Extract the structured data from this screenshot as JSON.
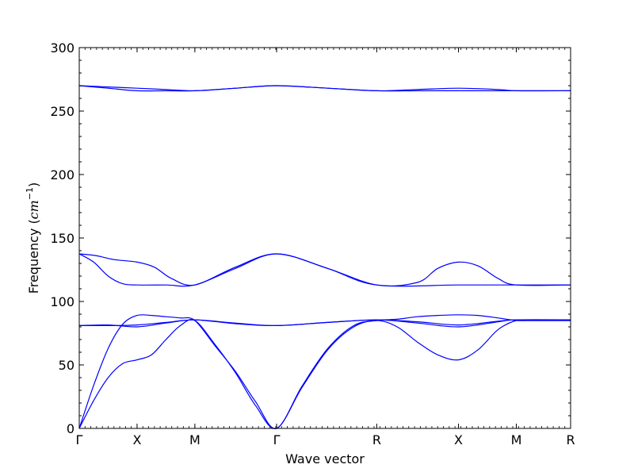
{
  "chart_data": {
    "type": "line",
    "title": "",
    "xlabel": "Wave vector",
    "ylabel": "Frequency (cm⁻¹)",
    "ylabel_parts": {
      "text": "Frequency (",
      "unit": "cm",
      "exp": "−1",
      "close": ")"
    },
    "ylim": [
      0,
      300
    ],
    "yticks": [
      0,
      50,
      100,
      150,
      200,
      250,
      300
    ],
    "xlim": [
      0,
      8.5
    ],
    "xticks": [
      {
        "pos": 0,
        "label": "Γ"
      },
      {
        "pos": 1,
        "label": "X"
      },
      {
        "pos": 2,
        "label": "M"
      },
      {
        "pos": 3.4142,
        "label": "Γ"
      },
      {
        "pos": 5.1463,
        "label": "R"
      },
      {
        "pos": 6.5605,
        "label": "X"
      },
      {
        "pos": 7.5605,
        "label": "M"
      },
      {
        "pos": 8.5,
        "label": "R"
      }
    ],
    "line_color": "#0000ff",
    "grid": false,
    "series": [
      {
        "x": [
          0,
          0.25,
          0.5,
          0.75,
          1,
          1.25,
          1.5,
          1.75,
          2,
          2.35,
          2.7,
          3.05,
          3.4142,
          3.85,
          4.3,
          4.75,
          5.1463,
          5.5,
          5.85,
          6.2,
          6.5605,
          6.9,
          7.25,
          7.5605,
          7.8,
          8.15,
          8.5
        ],
        "y": [
          0,
          22,
          40,
          51,
          54,
          58,
          70,
          81,
          85,
          66,
          44,
          18,
          0,
          32,
          62,
          80,
          85,
          80,
          68,
          58,
          54,
          62,
          78,
          85,
          85,
          85,
          85
        ]
      },
      {
        "x": [
          0,
          0.25,
          0.5,
          0.75,
          1,
          1.25,
          1.5,
          1.75,
          2,
          2.35,
          2.7,
          3.05,
          3.4142,
          3.85,
          4.3,
          4.75,
          5.1463,
          5.5,
          5.85,
          6.2,
          6.5605,
          6.9,
          7.25,
          7.5605,
          7.8,
          8.15,
          8.5
        ],
        "y": [
          0,
          34,
          63,
          82,
          89,
          89,
          88,
          87,
          85,
          65,
          45,
          21,
          0,
          33,
          63,
          81,
          85,
          86,
          88,
          89,
          89.5,
          89,
          87,
          85,
          85,
          85,
          85
        ]
      },
      {
        "x": [
          0,
          0.5,
          1,
          1.5,
          2,
          2.7,
          3.4142,
          4.3,
          5.1463,
          5.85,
          6.5605,
          7.25,
          7.5605,
          8.5
        ],
        "y": [
          81,
          81.5,
          80,
          83,
          85.5,
          82.5,
          81,
          83.5,
          85.5,
          83,
          80,
          84,
          85.5,
          85.5
        ]
      },
      {
        "x": [
          0,
          0.5,
          1,
          1.5,
          2,
          2.7,
          3.4142,
          4.3,
          5.1463,
          5.85,
          6.5605,
          7.25,
          7.5605,
          8.5
        ],
        "y": [
          81,
          81,
          81.5,
          83.5,
          85.5,
          83,
          81,
          83.5,
          85.5,
          84,
          81.5,
          84.5,
          85.5,
          85.5
        ]
      },
      {
        "x": [
          0,
          0.3,
          0.6,
          1,
          1.3,
          1.6,
          2,
          2.7,
          3.4142,
          4.3,
          5.1463,
          5.85,
          6.2,
          6.5605,
          6.9,
          7.25,
          7.5605,
          8.5
        ],
        "y": [
          137.5,
          136,
          133,
          131,
          127,
          118,
          113,
          127,
          137.5,
          126,
          113,
          115,
          126,
          131,
          128,
          118,
          113,
          113
        ]
      },
      {
        "x": [
          0,
          0.25,
          0.5,
          0.75,
          1,
          1.5,
          2,
          2.7,
          3.4142,
          4.3,
          5.1463,
          6.5605,
          7.5605,
          8.5
        ],
        "y": [
          137.5,
          131,
          120,
          114,
          113,
          113,
          113,
          126,
          137.5,
          126,
          113,
          113,
          113,
          113
        ]
      },
      {
        "x": [
          0,
          0.5,
          1,
          1.5,
          2,
          2.7,
          3.4142,
          4.3,
          5.1463,
          5.85,
          6.5605,
          7.25,
          7.5605,
          8.5
        ],
        "y": [
          270,
          269,
          268,
          267,
          266,
          268,
          270,
          268,
          266,
          267,
          268,
          267,
          266,
          266
        ]
      },
      {
        "x": [
          0,
          0.5,
          1,
          1.5,
          2,
          2.7,
          3.4142,
          4.3,
          5.1463,
          5.85,
          6.5605,
          7.25,
          7.5605,
          8.5
        ],
        "y": [
          270,
          268,
          266,
          266,
          266,
          268,
          270,
          268,
          266,
          266,
          266,
          266,
          266,
          266
        ]
      }
    ]
  }
}
